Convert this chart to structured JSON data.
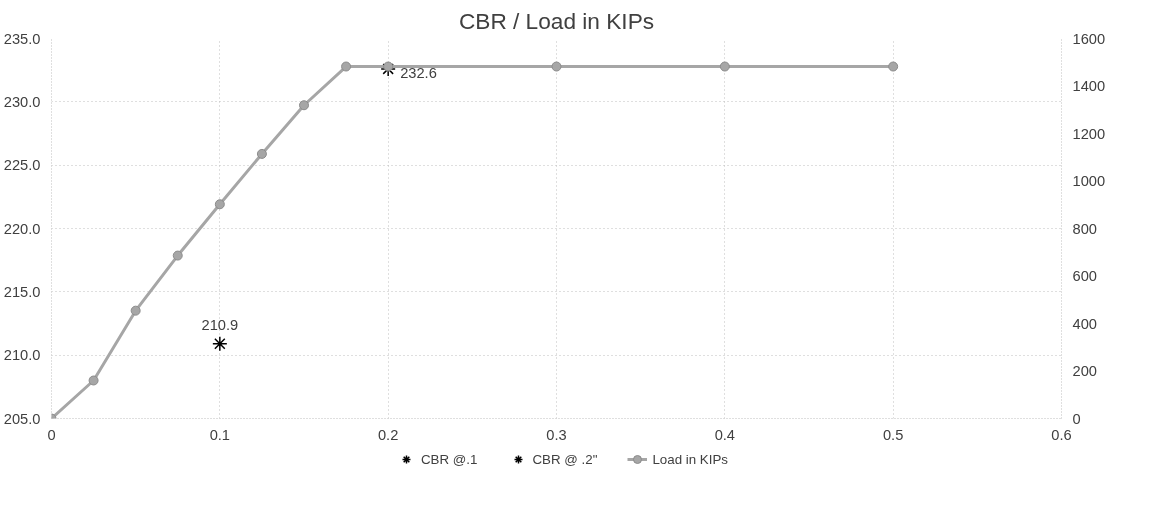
{
  "chart_data": {
    "type": "scatter",
    "title": "CBR / Load in KIPs",
    "xlim": [
      0,
      0.6
    ],
    "xticks": [
      0,
      0.1,
      0.2,
      0.3,
      0.4,
      0.5,
      0.6
    ],
    "ylim": [
      205,
      235
    ],
    "yticks": [
      {
        "value": 205,
        "label": "205.0"
      },
      {
        "value": 210,
        "label": "210.0"
      },
      {
        "value": 215,
        "label": "215.0"
      },
      {
        "value": 220,
        "label": "220.0"
      },
      {
        "value": 225,
        "label": "225.0"
      },
      {
        "value": 230,
        "label": "230.0"
      },
      {
        "value": 235,
        "label": "235.0"
      }
    ],
    "y2lim": [
      0,
      1600
    ],
    "y2ticks": [
      0,
      200,
      400,
      600,
      800,
      1000,
      1200,
      1400,
      1600
    ],
    "grid": true,
    "legend": "bottom",
    "series": [
      {
        "name": "CBR @.1",
        "marker": "cross",
        "color": "#000000",
        "x": [
          0.1
        ],
        "values": [
          210.9
        ],
        "data_labels": true
      },
      {
        "name": "CBR @ .2\"",
        "marker": "cross",
        "color": "#000000",
        "x": [
          0.2
        ],
        "values": [
          232.6
        ],
        "data_labels": true
      },
      {
        "name": "Load in KIPs",
        "type": "line",
        "marker": "circle",
        "color": "#a6a6a6",
        "axis": "y2",
        "x": [
          0,
          0.025,
          0.05,
          0.075,
          0.1,
          0.125,
          0.15,
          0.175,
          0.2,
          0.3,
          0.4,
          0.5
        ],
        "values": [
          0,
          160,
          454,
          686,
          902,
          1114,
          1319,
          1482,
          1482,
          1482,
          1482,
          1482
        ]
      }
    ]
  }
}
